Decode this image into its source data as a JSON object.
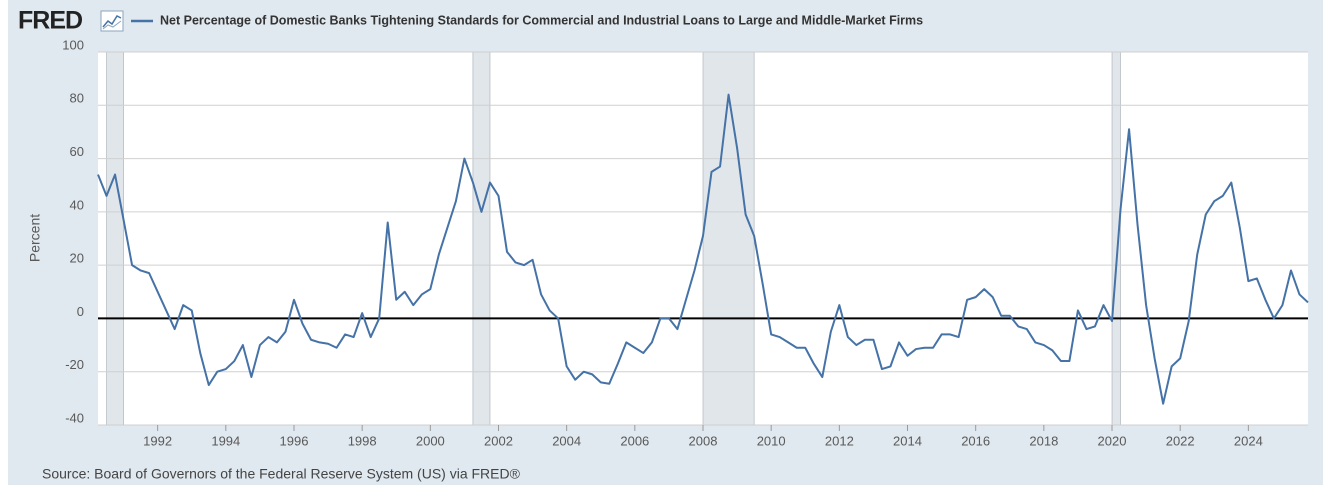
{
  "chart_data": {
    "type": "line",
    "logo": "FRED",
    "ylabel": "Percent",
    "source": "Source: Board of Governors of the Federal Reserve System (US) via FRED®",
    "x": [
      1990.25,
      1990.5,
      1990.75,
      1991,
      1991.25,
      1991.5,
      1991.75,
      1992,
      1992.25,
      1992.5,
      1992.75,
      1993,
      1993.25,
      1993.5,
      1993.75,
      1994,
      1994.25,
      1994.5,
      1994.75,
      1995,
      1995.25,
      1995.5,
      1995.75,
      1996,
      1996.25,
      1996.5,
      1996.75,
      1997,
      1997.25,
      1997.5,
      1997.75,
      1998,
      1998.25,
      1998.5,
      1998.75,
      1999,
      1999.25,
      1999.5,
      1999.75,
      2000,
      2000.25,
      2000.5,
      2000.75,
      2001,
      2001.25,
      2001.5,
      2001.75,
      2002,
      2002.25,
      2002.5,
      2002.75,
      2003,
      2003.25,
      2003.5,
      2003.75,
      2004,
      2004.25,
      2004.5,
      2004.75,
      2005,
      2005.25,
      2005.5,
      2005.75,
      2006,
      2006.25,
      2006.5,
      2006.75,
      2007,
      2007.25,
      2007.5,
      2007.75,
      2008,
      2008.25,
      2008.5,
      2008.75,
      2009,
      2009.25,
      2009.5,
      2009.75,
      2010,
      2010.25,
      2010.5,
      2010.75,
      2011,
      2011.25,
      2011.5,
      2011.75,
      2012,
      2012.25,
      2012.5,
      2012.75,
      2013,
      2013.25,
      2013.5,
      2013.75,
      2014,
      2014.25,
      2014.5,
      2014.75,
      2015,
      2015.25,
      2015.5,
      2015.75,
      2016,
      2016.25,
      2016.5,
      2016.75,
      2017,
      2017.25,
      2017.5,
      2017.75,
      2018,
      2018.25,
      2018.5,
      2018.75,
      2019,
      2019.25,
      2019.5,
      2019.75,
      2020,
      2020.25,
      2020.5,
      2020.75,
      2021,
      2021.25,
      2021.5,
      2021.75,
      2022,
      2022.25,
      2022.5,
      2022.75,
      2023,
      2023.25,
      2023.5,
      2023.75,
      2024,
      2024.25,
      2024.5,
      2024.75,
      2025,
      2025.25,
      2025.5,
      2025.75
    ],
    "series": [
      {
        "name": "Net Percentage of Domestic Banks Tightening Standards for Commercial and Industrial Loans to Large and Middle-Market Firms",
        "color": "#4572a7",
        "values": [
          54,
          46,
          54,
          37,
          20,
          18,
          17,
          10,
          3,
          -4,
          5,
          3,
          -13,
          -25,
          -20,
          -19,
          -16,
          -10,
          -22,
          -10,
          -7,
          -9,
          -5,
          7,
          -2,
          -8,
          -9,
          -9.5,
          -11,
          -6,
          -7,
          2,
          -7,
          0,
          36,
          7,
          10,
          5,
          9,
          11,
          24,
          34,
          44,
          60,
          51,
          40,
          51,
          46,
          25,
          21,
          20,
          22,
          9,
          3,
          0,
          -18,
          -23,
          -20,
          -21,
          -24,
          -24.5,
          -17,
          -9,
          -11,
          -13,
          -9,
          0,
          0,
          -4,
          7,
          18,
          31,
          55,
          57,
          84,
          64,
          39,
          31,
          13,
          -6,
          -7,
          -9,
          -11,
          -11,
          -17,
          -22,
          -5,
          5,
          -7,
          -10,
          -8,
          -8,
          -19,
          -18,
          -9,
          -14,
          -11.5,
          -11,
          -11,
          -6,
          -6,
          -7,
          7,
          8,
          11,
          8,
          1,
          1,
          -3,
          -4,
          -9,
          -10,
          -12,
          -16,
          -16,
          3,
          -4,
          -3,
          5,
          -1,
          41,
          71,
          35,
          5,
          -15,
          -32,
          -18,
          -15,
          -1,
          24,
          39,
          44,
          46,
          51,
          34,
          14,
          15,
          7,
          0,
          5,
          18,
          9,
          6
        ]
      }
    ],
    "recessions": [
      [
        1990.5,
        1991.0
      ],
      [
        2001.25,
        2001.75
      ],
      [
        2008.0,
        2009.5
      ],
      [
        2020.0,
        2020.25
      ]
    ],
    "xlim": [
      1990.25,
      2025.75
    ],
    "ylim": [
      -40,
      100
    ],
    "xticks": [
      1992,
      1994,
      1996,
      1998,
      2000,
      2002,
      2004,
      2006,
      2008,
      2010,
      2012,
      2014,
      2016,
      2018,
      2020,
      2022,
      2024
    ],
    "yticks": [
      -40,
      -20,
      0,
      20,
      40,
      60,
      80,
      100
    ],
    "grid": true
  }
}
